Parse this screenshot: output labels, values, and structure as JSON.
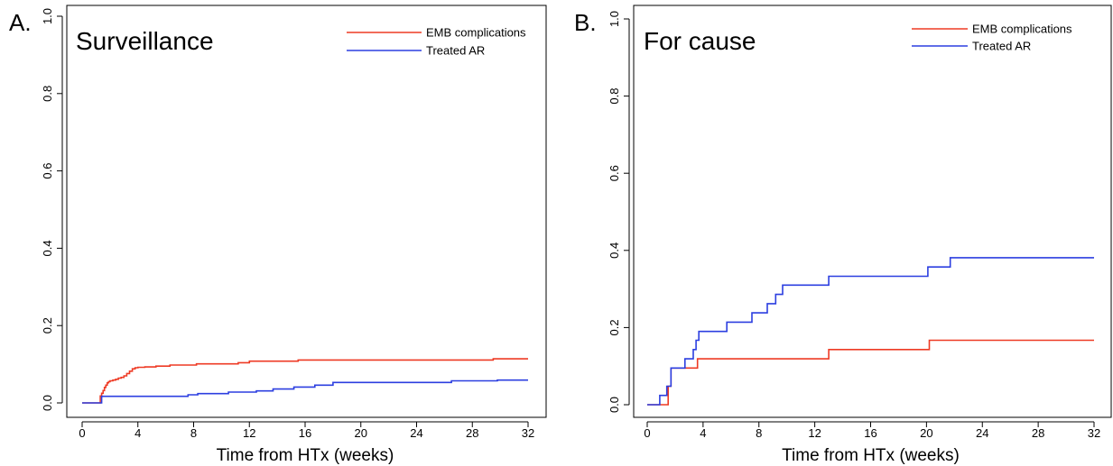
{
  "chart_data": [
    {
      "type": "line",
      "panel_label": "A.",
      "title": "Surveillance",
      "xlabel": "Time from HTx (weeks)",
      "ylabel": "",
      "xlim": [
        0,
        32
      ],
      "ylim": [
        0,
        1
      ],
      "xticks": [
        0,
        4,
        8,
        12,
        16,
        20,
        24,
        28,
        32
      ],
      "xtick_labels": [
        "0",
        "4",
        "8",
        "12",
        "16",
        "20",
        "24",
        "28",
        "32"
      ],
      "yticks": [
        0,
        0.2,
        0.4,
        0.6,
        0.8,
        1.0
      ],
      "ytick_labels": [
        "0.0",
        "0.2",
        "0.4",
        "0.6",
        "0.8",
        "1.0"
      ],
      "grid": false,
      "legend_position": "top-right",
      "series": [
        {
          "name": "EMB complications",
          "color": "#ee3a24",
          "step": true,
          "x": [
            0,
            1.3,
            1.4,
            1.5,
            1.6,
            1.7,
            1.8,
            1.9,
            2.0,
            2.2,
            2.4,
            2.6,
            2.8,
            3.0,
            3.2,
            3.4,
            3.6,
            3.8,
            4.0,
            4.5,
            5.3,
            6.3,
            8.2,
            11.2,
            12.0,
            15.5,
            29.5,
            32.0
          ],
          "y": [
            0,
            0.018,
            0.025,
            0.032,
            0.04,
            0.046,
            0.052,
            0.055,
            0.057,
            0.059,
            0.061,
            0.064,
            0.066,
            0.07,
            0.076,
            0.082,
            0.088,
            0.091,
            0.092,
            0.093,
            0.095,
            0.098,
            0.101,
            0.104,
            0.108,
            0.111,
            0.114,
            0.114
          ]
        },
        {
          "name": "Treated AR",
          "color": "#2c3fe0",
          "step": true,
          "x": [
            0,
            1.4,
            7.6,
            8.3,
            10.5,
            12.5,
            13.7,
            15.2,
            16.7,
            18.0,
            26.5,
            29.8,
            32.0
          ],
          "y": [
            0,
            0.017,
            0.021,
            0.024,
            0.028,
            0.031,
            0.036,
            0.041,
            0.046,
            0.053,
            0.057,
            0.059,
            0.059
          ]
        }
      ]
    },
    {
      "type": "line",
      "panel_label": "B.",
      "title": "For cause",
      "xlabel": "Time from HTx (weeks)",
      "ylabel": "",
      "xlim": [
        0,
        32
      ],
      "ylim": [
        0,
        1
      ],
      "xticks": [
        0,
        4,
        8,
        12,
        16,
        20,
        24,
        28,
        32
      ],
      "xtick_labels": [
        "0",
        "4",
        "8",
        "12",
        "16",
        "20",
        "24",
        "28",
        "32"
      ],
      "yticks": [
        0,
        0.2,
        0.4,
        0.6,
        0.8,
        1.0
      ],
      "ytick_labels": [
        "0.0",
        "0.2",
        "0.4",
        "0.6",
        "0.8",
        "1.0"
      ],
      "grid": false,
      "legend_position": "top-right",
      "series": [
        {
          "name": "EMB complications",
          "color": "#ee3a24",
          "step": true,
          "x": [
            0,
            1.5,
            1.7,
            3.6,
            13.0,
            20.2,
            32.0
          ],
          "y": [
            0,
            0.048,
            0.095,
            0.119,
            0.143,
            0.167,
            0.167
          ]
        },
        {
          "name": "Treated AR",
          "color": "#2c3fe0",
          "step": true,
          "x": [
            0,
            0.9,
            1.4,
            1.7,
            2.7,
            3.3,
            3.5,
            3.7,
            5.7,
            7.5,
            8.6,
            9.2,
            9.7,
            13.0,
            20.1,
            21.7,
            32.0
          ],
          "y": [
            0,
            0.024,
            0.048,
            0.095,
            0.119,
            0.143,
            0.167,
            0.19,
            0.214,
            0.238,
            0.262,
            0.286,
            0.31,
            0.333,
            0.357,
            0.381,
            0.381
          ]
        }
      ]
    }
  ]
}
